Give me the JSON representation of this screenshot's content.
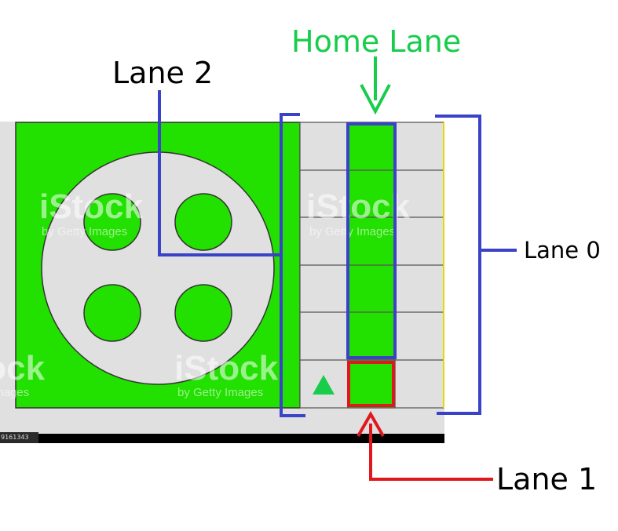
{
  "labels": {
    "home_lane": "Home Lane",
    "lane_2": "Lane 2",
    "lane_0": "Lane 0",
    "lane_1": "Lane 1"
  },
  "watermark": {
    "brand": "iStock",
    "tagline": "by Getty Images"
  },
  "photo_id": "9161343",
  "colors": {
    "board_green": "#22e000",
    "cell_gray": "#e0e0e0",
    "home_label_green": "#18cc4c",
    "bracket_blue": "#3a43c8",
    "lane1_red": "#e0181e"
  }
}
